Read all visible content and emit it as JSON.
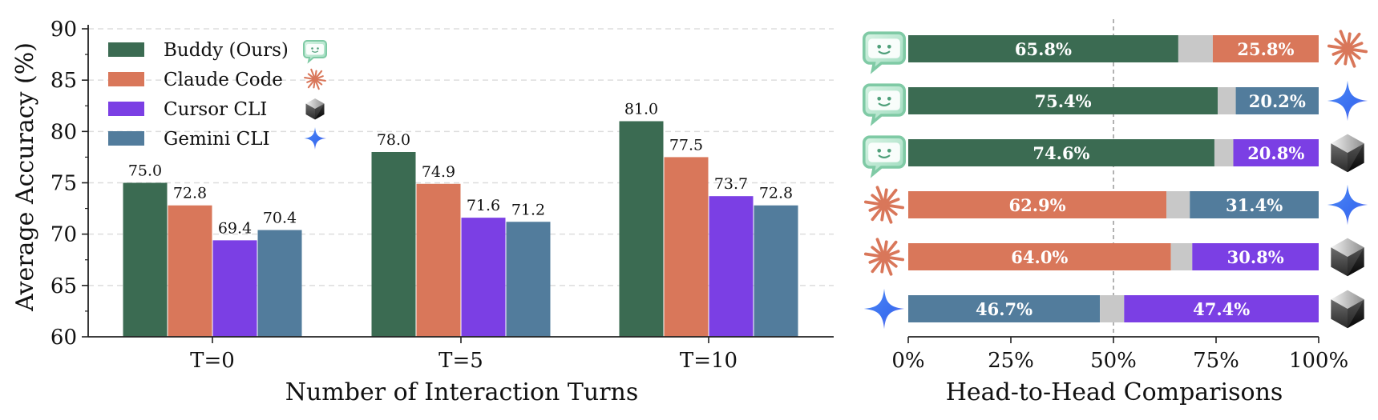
{
  "chart_data": [
    {
      "type": "bar",
      "xlabel": "Number of Interaction Turns",
      "ylabel": "Average Accuracy (%)",
      "categories": [
        "T=0",
        "T=5",
        "T=10"
      ],
      "ylim": [
        60,
        90
      ],
      "yticks": [
        60,
        65,
        70,
        75,
        80,
        85,
        90
      ],
      "grid": "horizontal dashed",
      "legend_position": "top-left",
      "series": [
        {
          "name": "Buddy (Ours)",
          "color": "#3b6b52",
          "icon": "buddy-chat-icon",
          "values": [
            75.0,
            78.0,
            81.0
          ],
          "labels": [
            "75.0",
            "78.0",
            "81.0"
          ]
        },
        {
          "name": "Claude Code",
          "color": "#d9775a",
          "icon": "claude-asterisk-icon",
          "values": [
            72.8,
            74.9,
            77.5
          ],
          "labels": [
            "72.8",
            "74.9",
            "77.5"
          ]
        },
        {
          "name": "Cursor CLI",
          "color": "#7b3fe4",
          "icon": "cursor-cube-icon",
          "values": [
            69.4,
            71.6,
            73.7
          ],
          "labels": [
            "69.4",
            "71.6",
            "73.7"
          ]
        },
        {
          "name": "Gemini CLI",
          "color": "#527c9c",
          "icon": "gemini-sparkle-icon",
          "values": [
            70.4,
            71.2,
            72.8
          ],
          "labels": [
            "70.4",
            "71.2",
            "72.8"
          ]
        }
      ]
    },
    {
      "type": "bar",
      "orientation": "horizontal-stacked",
      "xlabel": "Head-to-Head Comparisons",
      "xlim": [
        0,
        100
      ],
      "xticks": [
        "0%",
        "25%",
        "50%",
        "75%",
        "100%"
      ],
      "reference_line": 50,
      "tie_color": "#c8c8c8",
      "rows": [
        {
          "left_icon": "buddy-chat-icon",
          "right_icon": "claude-asterisk-icon",
          "left_value": 65.8,
          "right_value": 25.8,
          "left_label": "65.8%",
          "right_label": "25.8%",
          "left_color": "#3b6b52",
          "right_color": "#d9775a"
        },
        {
          "left_icon": "buddy-chat-icon",
          "right_icon": "gemini-sparkle-icon",
          "left_value": 75.4,
          "right_value": 20.2,
          "left_label": "75.4%",
          "right_label": "20.2%",
          "left_color": "#3b6b52",
          "right_color": "#527c9c"
        },
        {
          "left_icon": "buddy-chat-icon",
          "right_icon": "cursor-cube-icon",
          "left_value": 74.6,
          "right_value": 20.8,
          "left_label": "74.6%",
          "right_label": "20.8%",
          "left_color": "#3b6b52",
          "right_color": "#7b3fe4"
        },
        {
          "left_icon": "claude-asterisk-icon",
          "right_icon": "gemini-sparkle-icon",
          "left_value": 62.9,
          "right_value": 31.4,
          "left_label": "62.9%",
          "right_label": "31.4%",
          "left_color": "#d9775a",
          "right_color": "#527c9c"
        },
        {
          "left_icon": "claude-asterisk-icon",
          "right_icon": "cursor-cube-icon",
          "left_value": 64.0,
          "right_value": 30.8,
          "left_label": "64.0%",
          "right_label": "30.8%",
          "left_color": "#d9775a",
          "right_color": "#7b3fe4"
        },
        {
          "left_icon": "gemini-sparkle-icon",
          "right_icon": "cursor-cube-icon",
          "left_value": 46.7,
          "right_value": 47.4,
          "left_label": "46.7%",
          "right_label": "47.4%",
          "left_color": "#527c9c",
          "right_color": "#7b3fe4"
        }
      ]
    }
  ]
}
